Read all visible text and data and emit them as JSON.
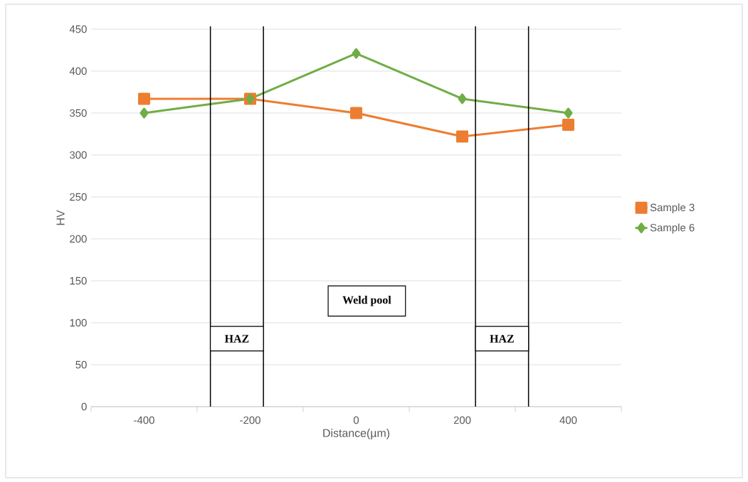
{
  "chart_data": {
    "type": "line",
    "xlabel": "Distance(µm)",
    "ylabel": "HV",
    "x": [
      -400,
      -200,
      0,
      200,
      400
    ],
    "series": [
      {
        "name": "Sample 3",
        "color": "#ed7d31",
        "marker": "square",
        "values": [
          367,
          367,
          350,
          322,
          336
        ]
      },
      {
        "name": "Sample 6",
        "color": "#70ad47",
        "marker": "diamond",
        "values": [
          350,
          367,
          421,
          367,
          350
        ]
      }
    ],
    "xlim": [
      -500,
      500
    ],
    "xticks": [
      {
        "value": -500,
        "label": null
      },
      -400,
      {
        "value": -300,
        "label": null
      },
      -200,
      {
        "value": -100,
        "label": null
      },
      0,
      {
        "value": 100,
        "label": null
      },
      200,
      {
        "value": 300,
        "label": null
      },
      400,
      {
        "value": 500,
        "label": null
      }
    ],
    "ylim": [
      0,
      450
    ],
    "yticks": [
      0,
      50,
      100,
      150,
      200,
      250,
      300,
      350,
      400,
      450
    ],
    "grid": "y",
    "legend": "right",
    "bands": [
      {
        "axis": "x",
        "from": -275,
        "to": -175,
        "label": "HAZ"
      },
      {
        "axis": "x",
        "from": 225,
        "to": 325,
        "label": "HAZ"
      }
    ],
    "annotations": [
      "Weld pool"
    ]
  }
}
